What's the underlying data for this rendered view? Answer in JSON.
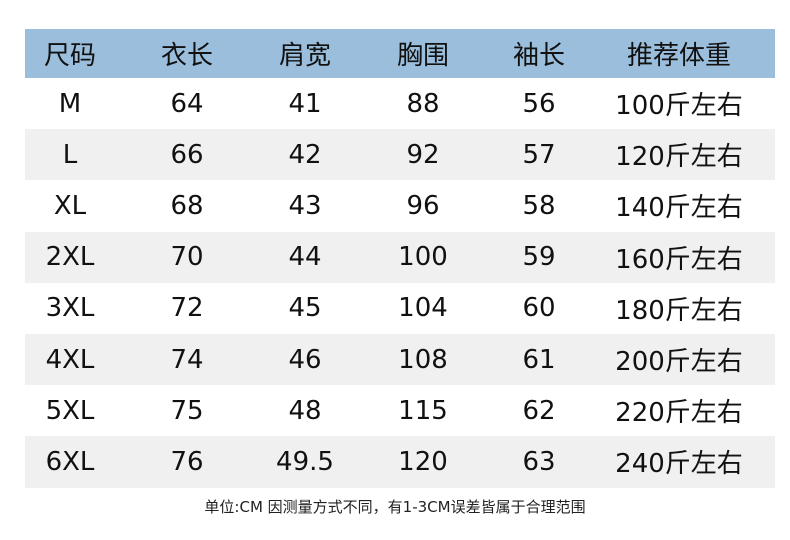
{
  "table": {
    "headers": [
      "尺码",
      "衣长",
      "肩宽",
      "胸围",
      "袖长",
      "推荐体重"
    ],
    "rows": [
      [
        "M",
        "64",
        "41",
        "88",
        "56",
        "100斤左右"
      ],
      [
        "L",
        "66",
        "42",
        "92",
        "57",
        "120斤左右"
      ],
      [
        "XL",
        "68",
        "43",
        "96",
        "58",
        "140斤左右"
      ],
      [
        "2XL",
        "70",
        "44",
        "100",
        "59",
        "160斤左右"
      ],
      [
        "3XL",
        "72",
        "45",
        "104",
        "60",
        "180斤左右"
      ],
      [
        "4XL",
        "74",
        "46",
        "108",
        "61",
        "200斤左右"
      ],
      [
        "5XL",
        "75",
        "48",
        "115",
        "62",
        "220斤左右"
      ],
      [
        "6XL",
        "76",
        "49.5",
        "120",
        "63",
        "240斤左右"
      ]
    ]
  },
  "footer": "单位:CM  因测量方式不同，有1-3CM误差皆属于合理范围",
  "colors": {
    "header_bg": "#9abedc",
    "alt_row_bg": "#f0f0f0"
  }
}
